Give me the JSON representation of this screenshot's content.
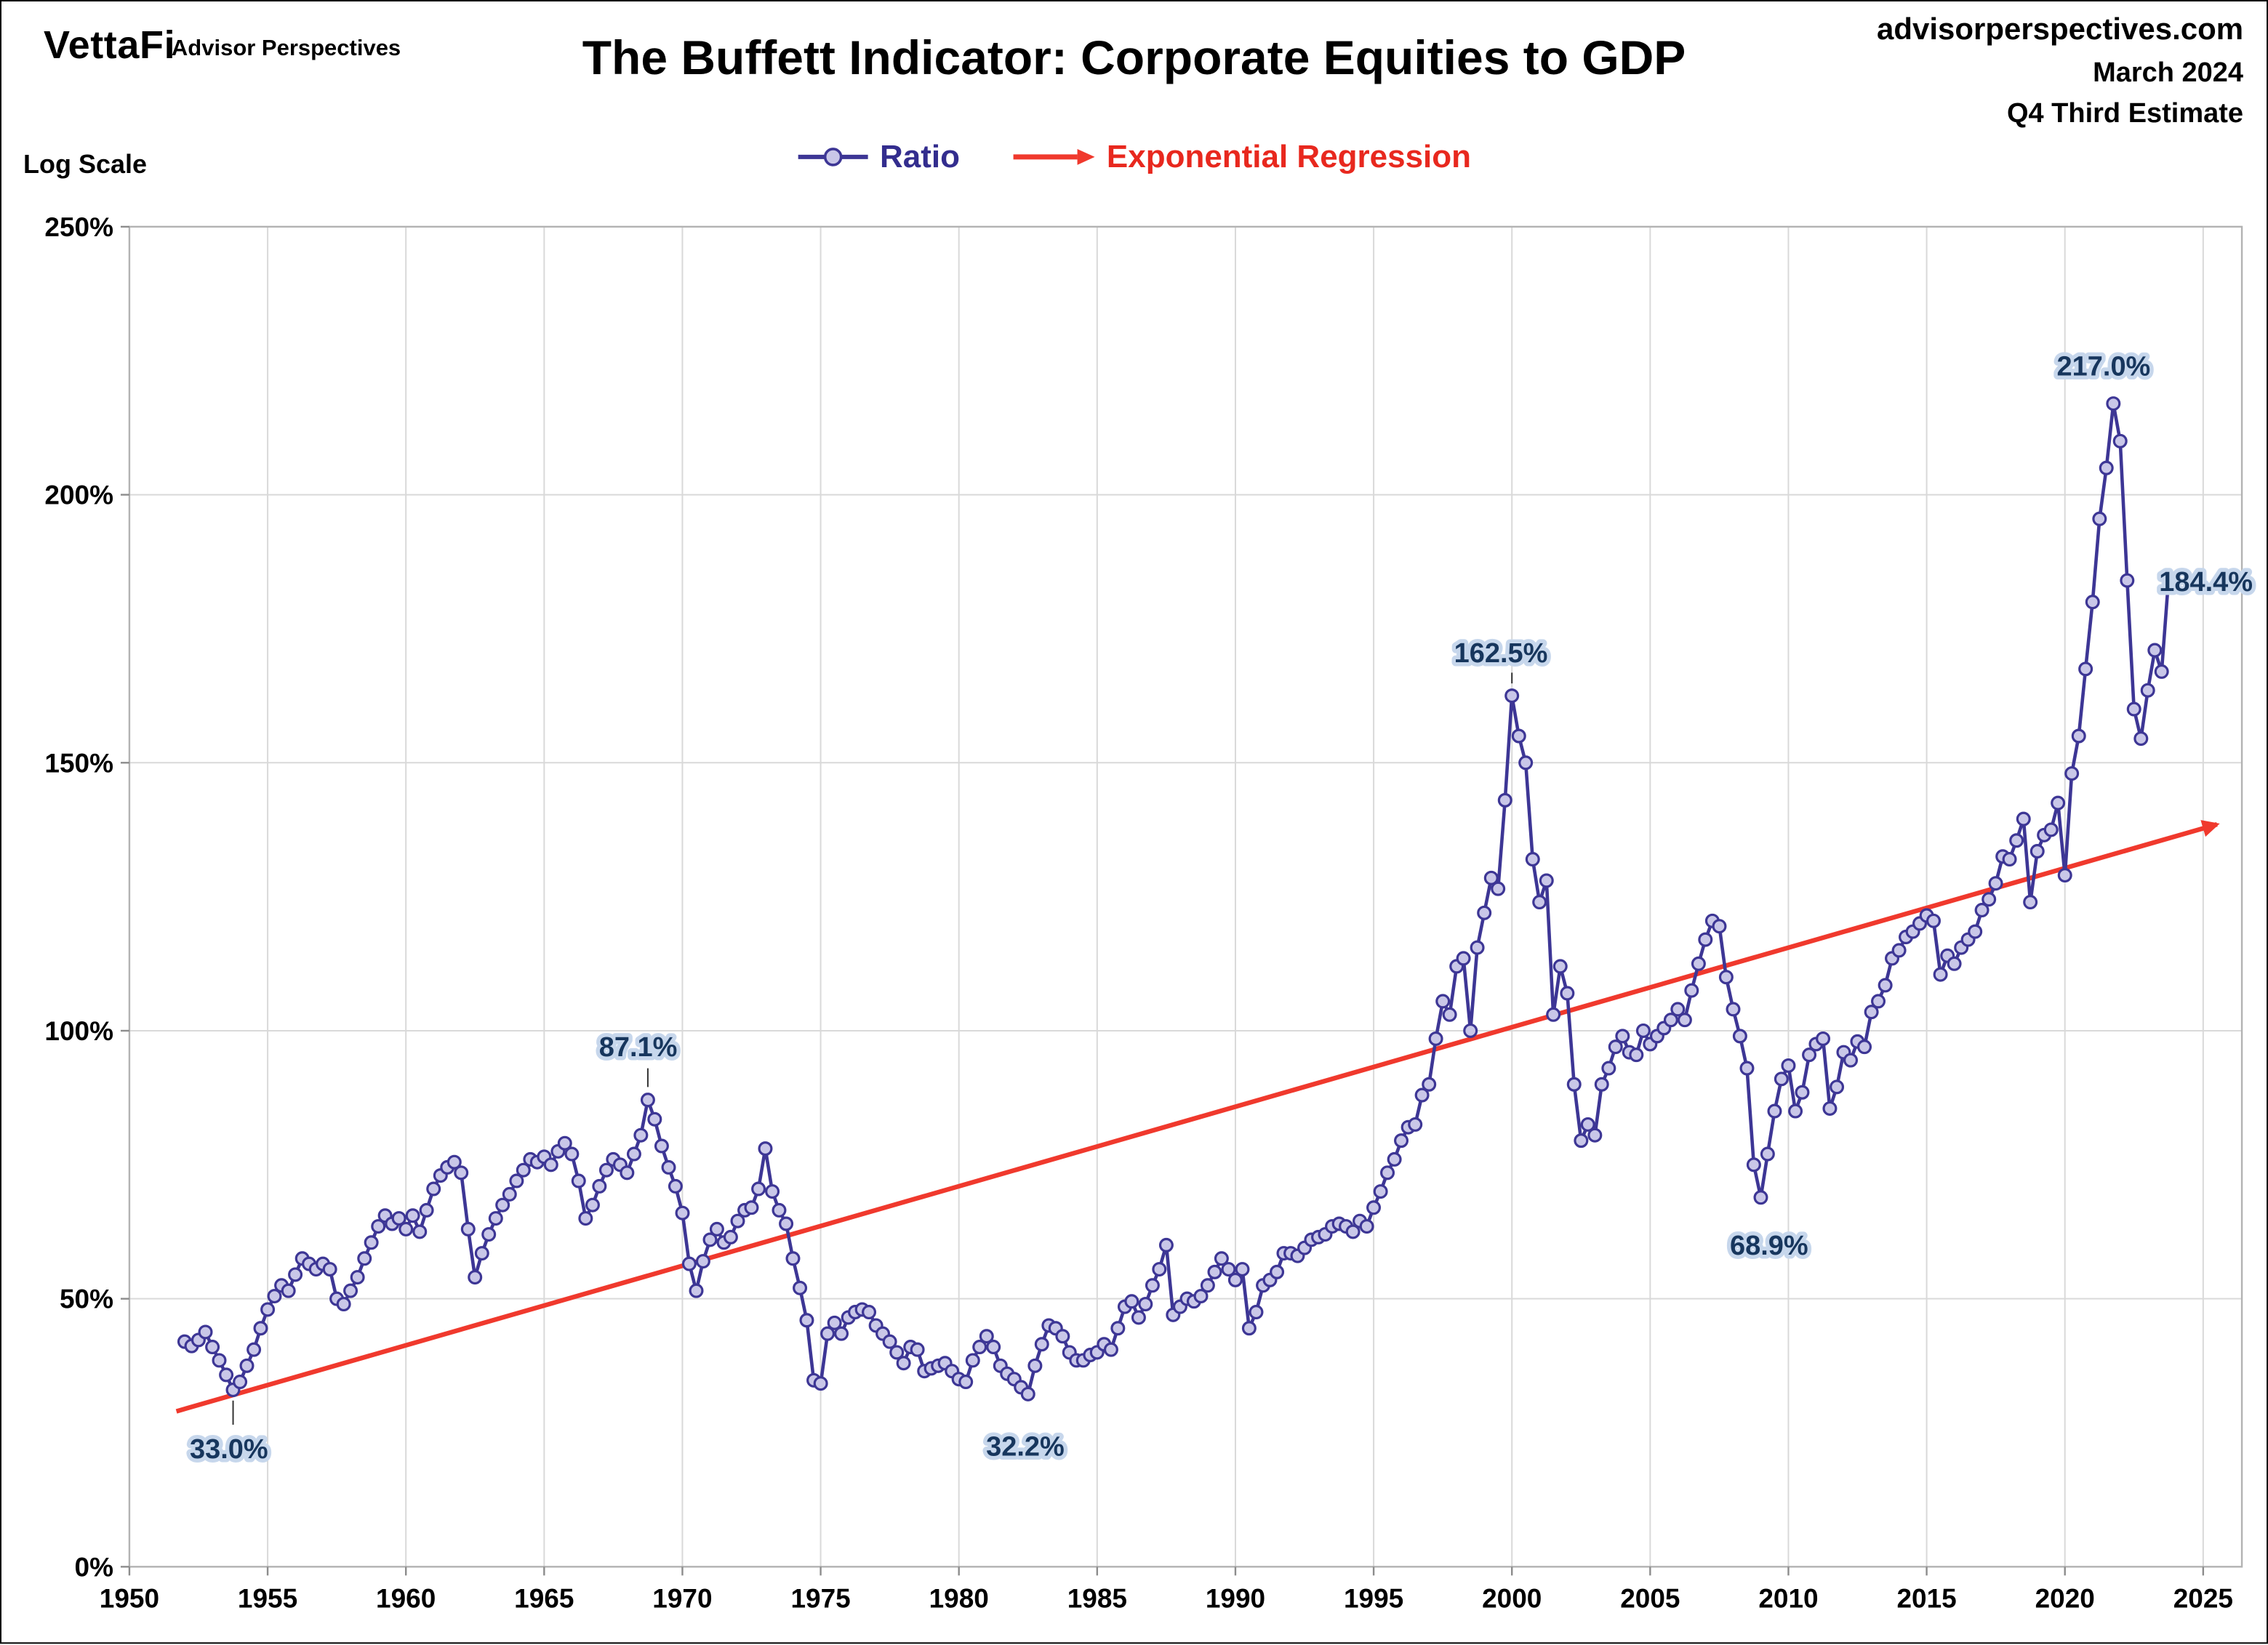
{
  "header": {
    "brand": "VettaFi",
    "brand_sub": "Advisor Perspectives",
    "title": "The Buffett Indicator: Corporate Equities to GDP",
    "site": "advisorperspectives.com",
    "date_line": "March 2024",
    "estimate_line": "Q4 Third Estimate"
  },
  "legend": {
    "ratio_label": "Ratio",
    "regression_label": "Exponential Regression"
  },
  "chart_data": {
    "type": "line",
    "title": "The Buffett Indicator: Corporate Equities to GDP",
    "axis_note": "Log Scale",
    "xlim": [
      1950,
      2026.4
    ],
    "ylim": [
      0,
      250
    ],
    "x_ticks": [
      1950,
      1955,
      1960,
      1965,
      1970,
      1975,
      1980,
      1985,
      1990,
      1995,
      2000,
      2005,
      2010,
      2015,
      2020,
      2025
    ],
    "y_ticks": [
      0,
      50,
      100,
      150,
      200,
      250
    ],
    "y_tick_suffix": "%",
    "grid": true,
    "legend_position": "top-center",
    "series_name": "Ratio",
    "ratio": {
      "start_year": 1952,
      "period_years": 0.25,
      "values": [
        42.0,
        41.2,
        42.3,
        43.8,
        41.0,
        38.5,
        35.8,
        33.0,
        34.5,
        37.5,
        40.5,
        44.5,
        48.0,
        50.5,
        52.5,
        51.5,
        54.5,
        57.5,
        56.5,
        55.5,
        56.5,
        55.5,
        50.0,
        49.0,
        51.5,
        54.0,
        57.5,
        60.5,
        63.5,
        65.5,
        64.0,
        65.0,
        63.0,
        65.5,
        62.5,
        66.5,
        70.5,
        73.0,
        74.5,
        75.5,
        73.5,
        63.0,
        54.0,
        58.5,
        62.0,
        65.0,
        67.5,
        69.5,
        72.0,
        74.0,
        76.0,
        75.5,
        76.5,
        75.0,
        77.5,
        79.0,
        77.0,
        72.0,
        65.0,
        67.5,
        71.0,
        74.0,
        76.0,
        75.0,
        73.5,
        77.0,
        80.5,
        87.1,
        83.5,
        78.5,
        74.5,
        71.0,
        66.0,
        56.5,
        51.5,
        57.0,
        61.0,
        63.0,
        60.5,
        61.5,
        64.5,
        66.5,
        67.0,
        70.5,
        78.0,
        70.0,
        66.5,
        64.0,
        57.5,
        52.0,
        46.0,
        34.8,
        34.2,
        43.5,
        45.5,
        43.5,
        46.5,
        47.5,
        48.0,
        47.5,
        45.0,
        43.5,
        42.0,
        40.0,
        38.0,
        41.0,
        40.5,
        36.5,
        37.0,
        37.5,
        38.0,
        36.5,
        35.0,
        34.5,
        38.5,
        41.0,
        43.0,
        41.0,
        37.5,
        36.0,
        35.0,
        33.5,
        32.2,
        37.5,
        41.5,
        45.0,
        44.5,
        43.0,
        40.0,
        38.5,
        38.5,
        39.5,
        40.0,
        41.5,
        40.5,
        44.5,
        48.5,
        49.5,
        46.5,
        49.0,
        52.5,
        55.5,
        60.0,
        47.0,
        48.5,
        50.0,
        49.5,
        50.5,
        52.5,
        55.0,
        57.5,
        55.5,
        53.5,
        55.5,
        44.5,
        47.5,
        52.5,
        53.5,
        55.0,
        58.5,
        58.5,
        58.0,
        59.5,
        61.0,
        61.5,
        62.0,
        63.5,
        64.0,
        63.5,
        62.5,
        64.5,
        63.5,
        67.0,
        70.0,
        73.5,
        76.0,
        79.5,
        82.0,
        82.5,
        88.0,
        90.0,
        98.5,
        105.5,
        103.0,
        112.0,
        113.5,
        100.0,
        115.5,
        122.0,
        128.5,
        126.5,
        143.0,
        162.5,
        155.0,
        150.0,
        132.0,
        124.0,
        128.0,
        103.0,
        112.0,
        107.0,
        90.0,
        79.5,
        82.5,
        80.5,
        90.0,
        93.0,
        97.0,
        99.0,
        96.0,
        95.5,
        100.0,
        97.5,
        99.0,
        100.5,
        102.0,
        104.0,
        102.0,
        107.5,
        112.5,
        117.0,
        120.5,
        119.5,
        110.0,
        104.0,
        99.0,
        93.0,
        75.0,
        68.9,
        77.0,
        85.0,
        91.0,
        93.5,
        85.0,
        88.5,
        95.5,
        97.5,
        98.5,
        85.5,
        89.5,
        96.0,
        94.5,
        98.0,
        97.0,
        103.5,
        105.5,
        108.5,
        113.5,
        115.0,
        117.5,
        118.5,
        120.0,
        121.5,
        120.5,
        110.5,
        114.0,
        112.5,
        115.5,
        117.0,
        118.5,
        122.5,
        124.5,
        127.5,
        132.5,
        132.0,
        135.5,
        139.5,
        124.0,
        133.5,
        136.5,
        137.5,
        142.5,
        129.0,
        148.0,
        155.0,
        167.5,
        180.0,
        195.5,
        205.0,
        217.0,
        210.0,
        184.0,
        160.0,
        154.5,
        163.5,
        171.0,
        167.0,
        184.4
      ]
    },
    "regression": {
      "name": "Exponential Regression",
      "x": [
        1951.7,
        2025.5
      ],
      "y": [
        29.0,
        138.5
      ]
    },
    "annotations": [
      {
        "text": "33.0%",
        "tx": 1953.6,
        "ty": 22.0,
        "leader": [
          1953.75,
          31.0,
          1953.75,
          26.5
        ]
      },
      {
        "text": "87.1%",
        "tx": 1968.4,
        "ty": 97.0,
        "leader": [
          1968.75,
          89.5,
          1968.75,
          93.0
        ]
      },
      {
        "text": "32.2%",
        "tx": 1982.4,
        "ty": 22.5
      },
      {
        "text": "162.5%",
        "tx": 1999.6,
        "ty": 170.5,
        "leader": [
          2000.0,
          164.8,
          2000.0,
          166.8
        ]
      },
      {
        "text": "68.9%",
        "tx": 2009.3,
        "ty": 60.0
      },
      {
        "text": "217.0%",
        "tx": 2021.4,
        "ty": 224.0
      },
      {
        "text": "184.4%",
        "tx": 2025.1,
        "ty": 183.8
      }
    ],
    "colors": {
      "ratio_line": "#3d3695",
      "marker_fill": "#c9c7e8",
      "regression": "#f0392d",
      "grid": "#d9d9d9",
      "plot_border": "#b3b3b3",
      "tick": "#8c8c8c",
      "axis_text": "#000000",
      "annotation_text": "#17365d",
      "annotation_halo": "#c7d7ec",
      "ratio_label": "#332d8e",
      "regression_label": "#e8281e",
      "leader": "#333333"
    }
  }
}
